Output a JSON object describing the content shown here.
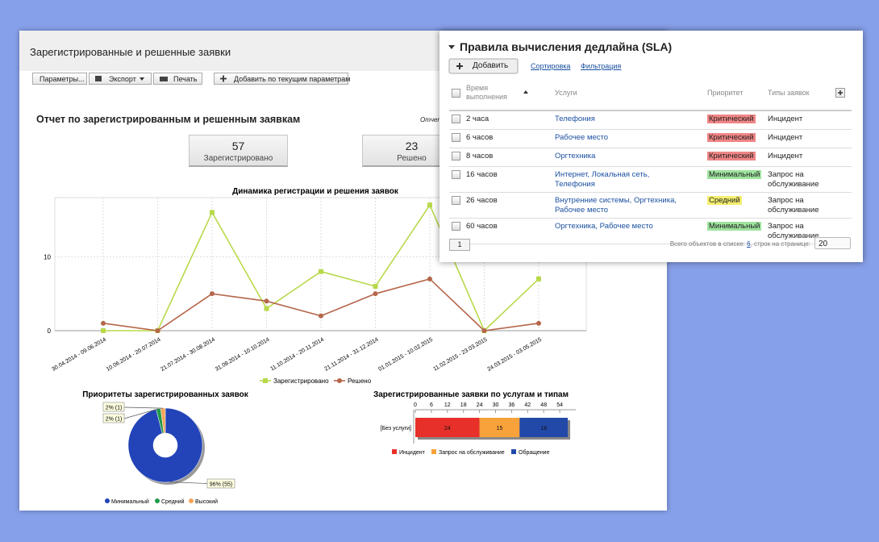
{
  "report": {
    "title": "Зарегистрированные и решенные заявки",
    "toolbar": [
      "Параметры...",
      "Экспорт",
      "Печать",
      "Добавить по текущим параметрам"
    ],
    "heading": "Отчет по зарегистрированным и решенным заявкам",
    "cut_label": "Отчет",
    "kpis": [
      {
        "value": 57,
        "label": "Зарегистрировано"
      },
      {
        "value": 23,
        "label": "Решено"
      }
    ]
  },
  "chart_data": [
    {
      "type": "line",
      "title": "Динамика регистрации и решения заявок",
      "categories": [
        "30.04.2014 - 09.06.2014",
        "10.06.2014 - 20.07.2014",
        "21.07.2014 - 30.08.2014",
        "31.08.2014 - 10.10.2014",
        "11.10.2014 - 20.11.2014",
        "21.11.2014 - 31.12.2014",
        "01.01.2015 - 10.02.2015",
        "11.02.2015 - 23.03.2015",
        "24.03.2015 - 03.05.2015"
      ],
      "series": [
        {
          "name": "Зарегистрировано",
          "color": "#b8d94a",
          "marker": "square",
          "values": [
            0,
            0,
            16,
            3,
            8,
            6,
            17,
            0,
            7
          ]
        },
        {
          "name": "Решено",
          "color": "#b5664a",
          "marker": "circle",
          "values": [
            1,
            0,
            5,
            4,
            2,
            5,
            7,
            0,
            1
          ]
        }
      ],
      "ylim": [
        0,
        18
      ],
      "yticks": [
        0,
        10
      ],
      "grid": true,
      "legend": "bottom"
    },
    {
      "type": "pie",
      "title": "Приоритеты зарегистрированных заявок",
      "categories": [
        "Минимальный",
        "Средний",
        "Высокий"
      ],
      "values": [
        96,
        2,
        2
      ],
      "value_labels": [
        "96% (55)",
        "2% (1)",
        "2% (1)"
      ],
      "colors": [
        "#2244b8",
        "#22994a",
        "#f5a55a"
      ],
      "donut": true,
      "legend": "bottom"
    },
    {
      "type": "stacked_bar",
      "title": "Зарегистрированные заявки по услугам и типам",
      "categories": [
        "[Без услуги]"
      ],
      "series": [
        {
          "name": "Инцидент",
          "color": "#e8302a",
          "values": [
            24
          ]
        },
        {
          "name": "Запрос на обслуживание",
          "color": "#f7a23a",
          "values": [
            15
          ]
        },
        {
          "name": "Обращение",
          "color": "#2248a8",
          "values": [
            18
          ]
        }
      ],
      "xlim": [
        0,
        60
      ],
      "xticks": [
        0,
        6,
        12,
        18,
        24,
        30,
        36,
        42,
        48,
        54
      ],
      "legend": "bottom"
    }
  ],
  "sla_panel": {
    "title": "Правила вычисления дедлайна (SLA)",
    "add_button": "Добавить",
    "links": [
      "Сортировка",
      "Фильтрация"
    ],
    "columns": [
      "Время выполнения",
      "Услуги",
      "Приоритет",
      "Типы заявок"
    ],
    "rows": [
      {
        "time": "2 часа",
        "services": "Телефония",
        "priority": "Критический",
        "priority_color": "#f08585",
        "types": "Инцидент"
      },
      {
        "time": "6 часов",
        "services": "Рабочее место",
        "priority": "Критический",
        "priority_color": "#f08585",
        "types": "Инцидент"
      },
      {
        "time": "8 часов",
        "services": "Оргтехника",
        "priority": "Критический",
        "priority_color": "#f08585",
        "types": "Инцидент"
      },
      {
        "time": "16 часов",
        "services": "Интернет, Локальная сеть, Телефония",
        "priority": "Минимальный",
        "priority_color": "#9ee39e",
        "types": "Запрос на обслуживание"
      },
      {
        "time": "26 часов",
        "services": "Внутренние системы, Оргтехника, Рабочее место",
        "priority": "Средний",
        "priority_color": "#f4ee6e",
        "types": "Запрос на обслуживание"
      },
      {
        "time": "60 часов",
        "services": "Оргтехника, Рабочее место",
        "priority": "Минимальный",
        "priority_color": "#9ee39e",
        "types": "Запрос на обслуживание"
      }
    ],
    "pager": {
      "page": 1,
      "total_label": "Всего объектов в списке:",
      "total": 6,
      "per_page_label": ", строк на странице:",
      "per_page": 20
    }
  }
}
